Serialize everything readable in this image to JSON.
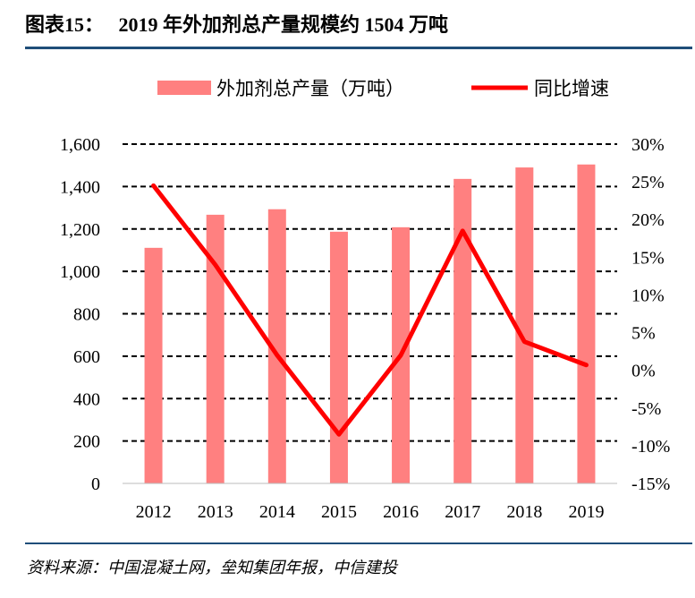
{
  "header": {
    "figure_label": "图表15：",
    "title": "2019 年外加剂总产量规模约 1504 万吨"
  },
  "source": "资料来源：中国混凝土网，垒知集团年报，中信建投",
  "chart_data": {
    "type": "bar+line",
    "categories": [
      "2012",
      "2013",
      "2014",
      "2015",
      "2016",
      "2017",
      "2018",
      "2019"
    ],
    "series": [
      {
        "name": "外加剂总产量（万吨）",
        "type": "bar",
        "axis": "left",
        "color": "#ff8080",
        "values": [
          1111,
          1267,
          1293,
          1187,
          1208,
          1436,
          1490,
          1504
        ]
      },
      {
        "name": "同比增速",
        "type": "line",
        "axis": "right",
        "color": "#ff0000",
        "values": [
          24.5,
          14.0,
          2.0,
          -8.5,
          2.0,
          18.5,
          3.8,
          0.7
        ]
      }
    ],
    "left_axis": {
      "ylim": [
        0,
        1600
      ],
      "ticks": [
        "0",
        "200",
        "400",
        "600",
        "800",
        "1,000",
        "1,200",
        "1,400",
        "1,600"
      ]
    },
    "right_axis": {
      "ylim": [
        -15,
        30
      ],
      "ticks": [
        "-15%",
        "-10%",
        "-5%",
        "0%",
        "5%",
        "10%",
        "15%",
        "20%",
        "25%",
        "30%"
      ]
    },
    "grid": "horizontal dashed",
    "legend": "top"
  }
}
